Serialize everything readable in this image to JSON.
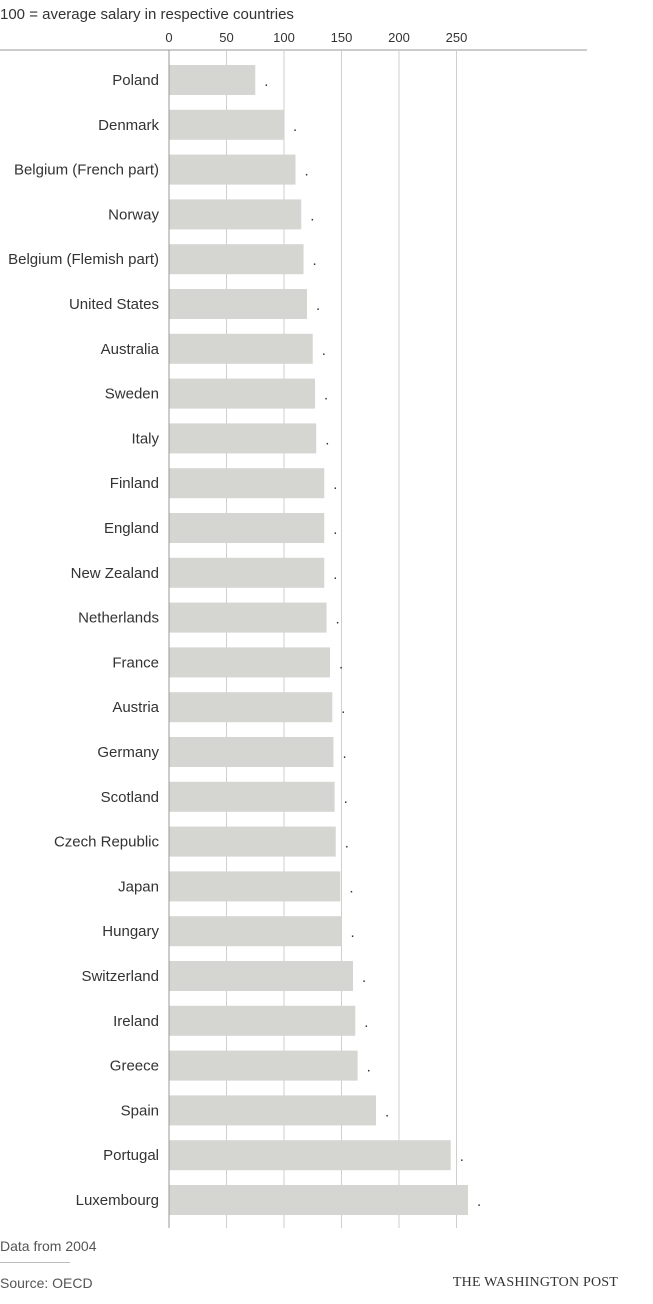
{
  "chart_data": {
    "type": "bar",
    "orientation": "horizontal",
    "subtitle": "100 = average salary in respective countries",
    "categories": [
      "Poland",
      "Denmark",
      "Belgium (French part)",
      "Norway",
      "Belgium (Flemish part)",
      "United States",
      "Australia",
      "Sweden",
      "Italy",
      "Finland",
      "England",
      "New Zealand",
      "Netherlands",
      "France",
      "Austria",
      "Germany",
      "Scotland",
      "Czech Republic",
      "Japan",
      "Hungary",
      "Switzerland",
      "Ireland",
      "Greece",
      "Spain",
      "Portugal",
      "Luxembourg"
    ],
    "values": [
      75,
      100,
      110,
      115,
      117,
      120,
      125,
      127,
      128,
      135,
      135,
      135,
      137,
      140,
      142,
      143,
      144,
      145,
      149,
      150,
      160,
      162,
      164,
      180,
      245,
      260
    ],
    "data_labels": [
      ".",
      ".",
      ".",
      ".",
      ".",
      ".",
      ".",
      ".",
      ".",
      ".",
      ".",
      ".",
      ".",
      ".",
      ".",
      ".",
      ".",
      ".",
      ".",
      ".",
      ".",
      ".",
      ".",
      ".",
      ".",
      "."
    ],
    "xticks": [
      0,
      50,
      100,
      150,
      200,
      250
    ],
    "xlim": [
      0,
      300
    ],
    "grid": true,
    "bar_color": "#d5d5d1",
    "gridline_color": "#cfcfcf",
    "axis_color": "#999999"
  },
  "footnote": "Data from 2004",
  "source": "Source: OECD",
  "brand": "THE WASHINGTON POST"
}
